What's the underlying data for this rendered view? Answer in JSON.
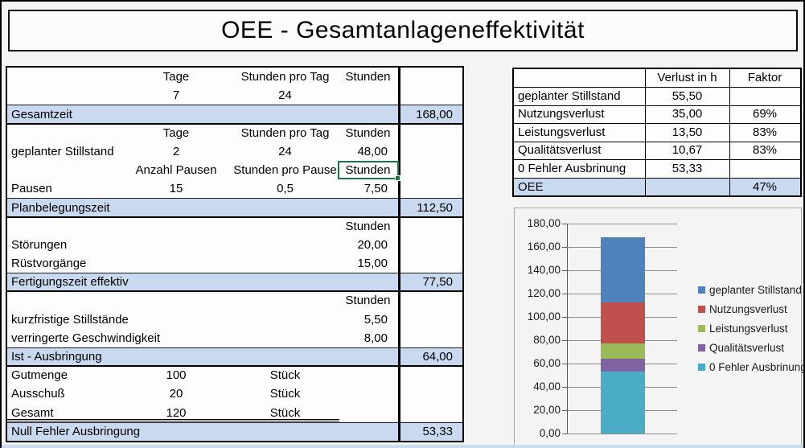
{
  "title": "OEE - Gesamtanlageneffektivität",
  "colors": {
    "summary_row_fill": "#C9D9F0",
    "selection_border": "#217346",
    "series_blue": "#4F81BD",
    "series_red": "#C0504D",
    "series_green": "#9BBB59",
    "series_purple": "#8064A2",
    "series_teal": "#4BACC6"
  },
  "left_table": {
    "rows": [
      {
        "b": "Tage",
        "c": "Stunden pro Tag",
        "d": "Stunden",
        "d_header": true
      },
      {
        "b": "7",
        "c": "24"
      },
      {
        "summary": true,
        "label": "Gesamtzeit",
        "result": "168,00"
      },
      {
        "b": "Tage",
        "c": "Stunden pro Tag",
        "d": "Stunden",
        "d_header": true,
        "section_start": true
      },
      {
        "label": "geplanter Stillstand",
        "b": "2",
        "c": "24",
        "d": "48,00"
      },
      {
        "b": "Anzahl Pausen",
        "c": "Stunden pro Pause",
        "d": "Stunden",
        "d_header": true,
        "selected": true
      },
      {
        "label": "Pausen",
        "b": "15",
        "c": "0,5",
        "d": "7,50"
      },
      {
        "summary": true,
        "label": "Planbelegungszeit",
        "result": "112,50"
      },
      {
        "d": "Stunden",
        "d_header": true,
        "section_start": true
      },
      {
        "label": "Störungen",
        "d": "20,00"
      },
      {
        "label": "Rüstvorgänge",
        "d": "15,00"
      },
      {
        "summary": true,
        "label": "Fertigungszeit effektiv",
        "result": "77,50"
      },
      {
        "d": "Stunden",
        "d_header": true,
        "section_start": true
      },
      {
        "label": "kurzfristige Stillstände",
        "d": "5,50"
      },
      {
        "label": "verringerte Geschwindigkeit",
        "d": "8,00"
      },
      {
        "summary": true,
        "label": "Ist - Ausbringung",
        "result": "64,00"
      },
      {
        "label": "Gutmenge",
        "b": "100",
        "c": "Stück",
        "section_start": true
      },
      {
        "label": "Ausschuß",
        "b": "20",
        "c": "Stück"
      },
      {
        "label": "Gesamt",
        "b": "120",
        "c": "Stück",
        "double_underline": true
      },
      {
        "summary": true,
        "label": "Null Fehler Ausbringung",
        "result": "53,33"
      }
    ]
  },
  "right_table": {
    "headers": [
      "",
      "Verlust in h",
      "Faktor"
    ],
    "rows": [
      {
        "label": "geplanter Stillstand",
        "verlust": "55,50",
        "faktor": ""
      },
      {
        "label": "Nutzungsverlust",
        "verlust": "35,00",
        "faktor": "69%"
      },
      {
        "label": "Leistungsverlust",
        "verlust": "13,50",
        "faktor": "83%"
      },
      {
        "label": "Qualitätsverlust",
        "verlust": "10,67",
        "faktor": "83%"
      },
      {
        "label": "0 Fehler Ausbrinung",
        "verlust": "53,33",
        "faktor": ""
      },
      {
        "label": "OEE",
        "verlust": "",
        "faktor": "47%",
        "summary": true
      }
    ]
  },
  "chart_data": {
    "type": "bar",
    "subtype": "stacked",
    "categories": [
      ""
    ],
    "series": [
      {
        "name": "geplanter Stillstand",
        "values": [
          55.5
        ],
        "color": "#4F81BD"
      },
      {
        "name": "Nutzungsverlust",
        "values": [
          35.0
        ],
        "color": "#C0504D"
      },
      {
        "name": "Leistungsverlust",
        "values": [
          13.5
        ],
        "color": "#9BBB59"
      },
      {
        "name": "Qualitätsverlust",
        "values": [
          10.67
        ],
        "color": "#8064A2"
      },
      {
        "name": "0 Fehler Ausbrinung",
        "values": [
          53.33
        ],
        "color": "#4BACC6"
      }
    ],
    "stack_order_bottom_to_top": [
      "0 Fehler Ausbrinung",
      "Qualitätsverlust",
      "Leistungsverlust",
      "Nutzungsverlust",
      "geplanter Stillstand"
    ],
    "stack_total": 168.0,
    "ylim": [
      0,
      180
    ],
    "ytick_step": 20,
    "ytick_labels": [
      "0,00",
      "20,00",
      "40,00",
      "60,00",
      "80,00",
      "100,00",
      "120,00",
      "140,00",
      "160,00",
      "180,00"
    ],
    "xlabel": "",
    "ylabel": "",
    "grid": true,
    "legend_position": "right"
  }
}
